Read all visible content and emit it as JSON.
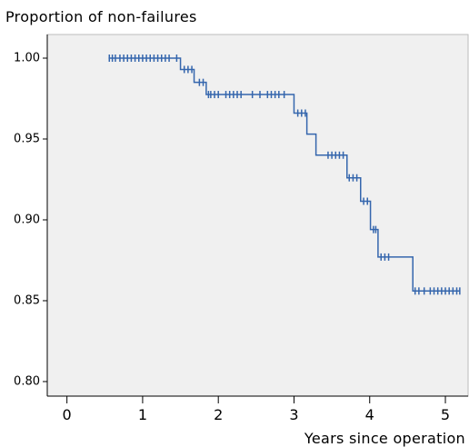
{
  "chart_data": {
    "type": "step",
    "title": "Proportion of non-failures",
    "x_label": "Years since operation",
    "xlim": [
      -0.26,
      5.3
    ],
    "ylim": [
      0.791,
      1.0146
    ],
    "xticks": [
      0,
      1,
      2,
      3,
      4,
      5
    ],
    "yticks": [
      {
        "value": 0.8,
        "label": "0.80"
      },
      0.85,
      {
        "value": 0.9,
        "label": "0.90"
      },
      0.95,
      {
        "value": 1.0,
        "label": "1.00"
      }
    ],
    "color": "#3566ad",
    "background": "#f0f0f0",
    "series": [
      {
        "x": [
          0.55,
          1.5,
          1.68,
          1.84,
          3.0,
          3.17,
          3.29,
          3.7,
          3.88,
          4.01,
          4.11,
          4.57,
          5.19
        ],
        "values": [
          1.0,
          0.993,
          0.985,
          0.9775,
          0.966,
          0.953,
          0.94,
          0.926,
          0.9115,
          0.894,
          0.877,
          0.856,
          0.856
        ]
      }
    ],
    "censored": {
      "x": [
        0.56,
        0.6,
        0.64,
        0.7,
        0.75,
        0.8,
        0.85,
        0.9,
        0.95,
        1.0,
        1.05,
        1.1,
        1.15,
        1.2,
        1.25,
        1.3,
        1.35,
        1.45,
        1.55,
        1.6,
        1.65,
        1.75,
        1.8,
        1.87,
        1.9,
        1.95,
        2.0,
        2.1,
        2.15,
        2.2,
        2.25,
        2.3,
        2.45,
        2.55,
        2.65,
        2.7,
        2.75,
        2.8,
        2.87,
        3.05,
        3.1,
        3.15,
        3.45,
        3.5,
        3.55,
        3.6,
        3.65,
        3.73,
        3.78,
        3.83,
        3.92,
        3.97,
        4.05,
        4.08,
        4.15,
        4.2,
        4.25,
        4.6,
        4.65,
        4.72,
        4.8,
        4.85,
        4.9,
        4.95,
        5.0,
        5.05,
        5.1,
        5.15,
        5.19
      ],
      "values": [
        1.0,
        1.0,
        1.0,
        1.0,
        1.0,
        1.0,
        1.0,
        1.0,
        1.0,
        1.0,
        1.0,
        1.0,
        1.0,
        1.0,
        1.0,
        1.0,
        1.0,
        1.0,
        0.993,
        0.993,
        0.993,
        0.985,
        0.985,
        0.9775,
        0.9775,
        0.9775,
        0.9775,
        0.9775,
        0.9775,
        0.9775,
        0.9775,
        0.9775,
        0.9775,
        0.9775,
        0.9775,
        0.9775,
        0.9775,
        0.9775,
        0.9775,
        0.966,
        0.966,
        0.966,
        0.94,
        0.94,
        0.94,
        0.94,
        0.94,
        0.926,
        0.926,
        0.926,
        0.9115,
        0.9115,
        0.894,
        0.894,
        0.877,
        0.877,
        0.877,
        0.856,
        0.856,
        0.856,
        0.856,
        0.856,
        0.856,
        0.856,
        0.856,
        0.856,
        0.856,
        0.856,
        0.856
      ]
    }
  }
}
